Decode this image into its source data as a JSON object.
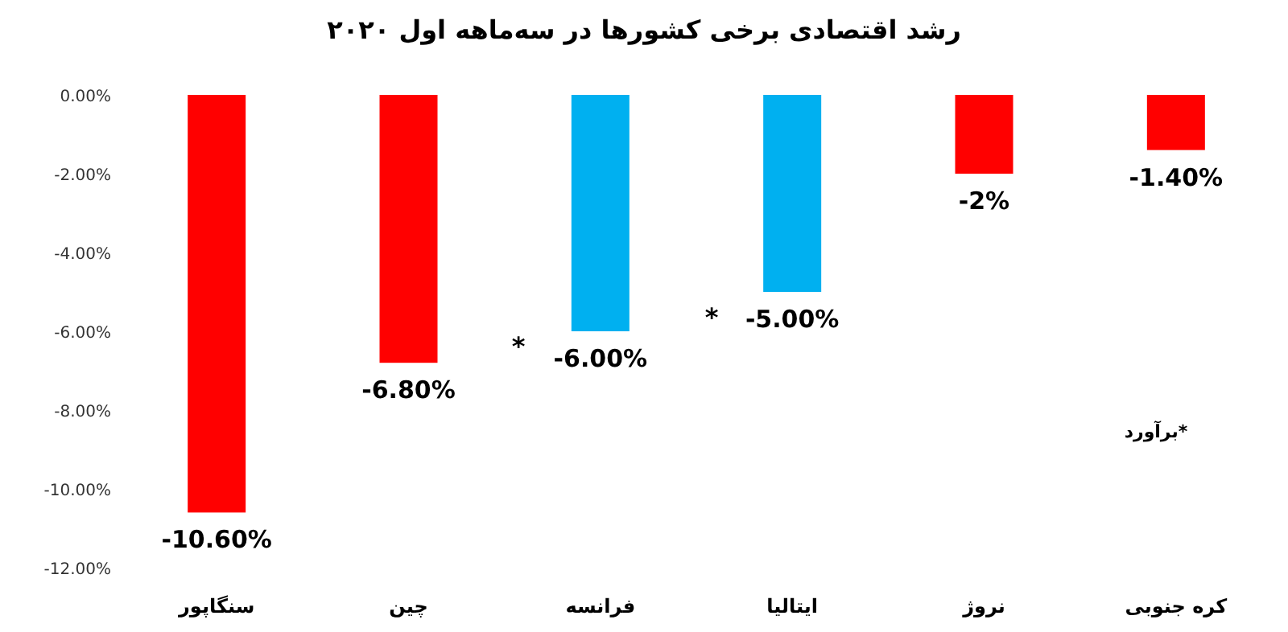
{
  "chart_data": {
    "type": "bar",
    "title": "رشد اقتصادی برخی کشورها در سه‌ماهه اول ۲۰۲۰",
    "categories": [
      "سنگاپور",
      "چین",
      "فرانسه",
      "ایتالیا",
      "نروژ",
      "کره جنوبی"
    ],
    "values": [
      -10.6,
      -6.8,
      -6,
      -5,
      -2,
      -1.4
    ],
    "colors": [
      "#ff0000",
      "#ff0000",
      "#00b0f0",
      "#00b0f0",
      "#ff0000",
      "#ff0000"
    ],
    "value_labels": [
      "-10.60%",
      "-6.80%",
      "-6.00%",
      "-5.00%",
      "-2%",
      "-1.40%"
    ],
    "ylim": [
      -12,
      0
    ],
    "yticks": [
      {
        "value": 0,
        "label": "0.00%"
      },
      {
        "value": -2,
        "label": "-2.00%"
      },
      {
        "value": -4,
        "label": "-4.00%"
      },
      {
        "value": -6,
        "label": "-6.00%"
      },
      {
        "value": -8,
        "label": "-8.00%"
      },
      {
        "value": -10,
        "label": "-10.00%"
      },
      {
        "value": -12,
        "label": "-12.00%"
      }
    ],
    "annotations": [
      "*",
      "*",
      "*برآورد"
    ],
    "grid": false
  }
}
